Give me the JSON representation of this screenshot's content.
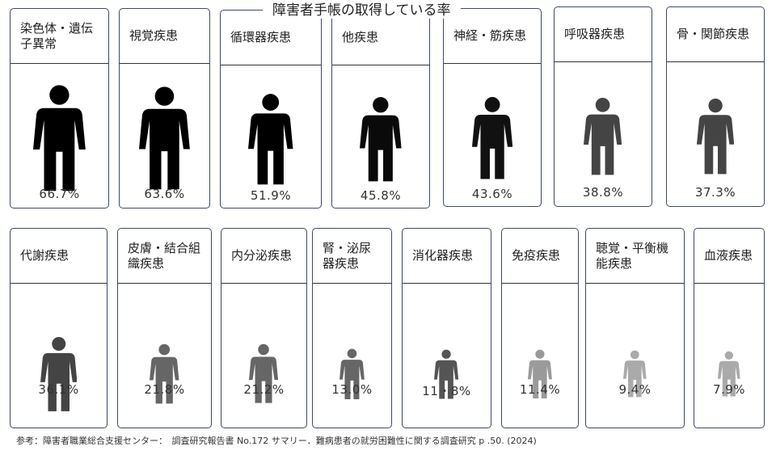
{
  "chart_data": {
    "type": "pictograph",
    "title": "障害者手帳の取得している率",
    "unit": "%",
    "categories": [
      "染色体・遺伝子異常",
      "視覚疾患",
      "循環器疾患",
      "他疾患",
      "神経・筋疾患",
      "呼吸器疾患",
      "骨・関節疾患",
      "代謝疾患",
      "皮膚・結合組織疾患",
      "内分泌疾患",
      "腎・泌尿器疾患",
      "消化器疾患",
      "免疫疾患",
      "聴覚・平衡機能疾患",
      "血液疾患"
    ],
    "labels": [
      "66.7%",
      "63.6%",
      "51.9%",
      "45.8%",
      "43.6%",
      "38.8%",
      "37.3%",
      "36.1%",
      "21.8%",
      "21.2%",
      "13.0%",
      "11・8%",
      "11.4%",
      "9.4%",
      "7.9%"
    ],
    "values": [
      66.7,
      63.6,
      51.9,
      45.8,
      43.6,
      38.8,
      37.3,
      36.1,
      21.8,
      21.2,
      13.0,
      11.8,
      11.4,
      9.4,
      7.9
    ],
    "figure_colors": [
      "#000000",
      "#000000",
      "#000000",
      "#0a0a0a",
      "#111111",
      "#444444",
      "#444444",
      "#444444",
      "#666666",
      "#666666",
      "#666666",
      "#555555",
      "#9a9a9a",
      "#aaaaaa",
      "#aaaaaa"
    ]
  },
  "footnote": "参考：障害者職業総合支援センター：　調査研究報告書 No.172 サマリー．難病患者の就労困難性に関する調査研究 p .50. (2024)"
}
